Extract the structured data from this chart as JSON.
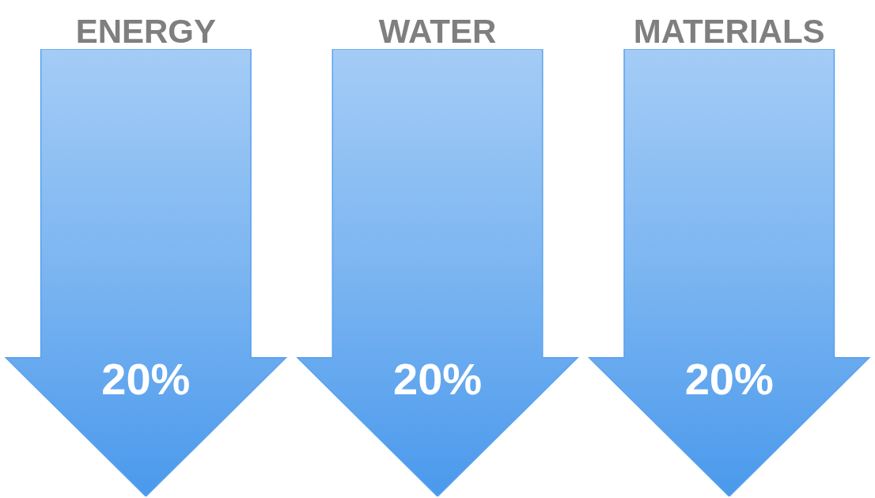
{
  "chart_data": {
    "type": "other",
    "categories": [
      "ENERGY",
      "WATER",
      "MATERIALS"
    ],
    "values": [
      20,
      20,
      20
    ],
    "value_labels": [
      "20%",
      "20%",
      "20%"
    ],
    "color": "#5aa2ee"
  }
}
